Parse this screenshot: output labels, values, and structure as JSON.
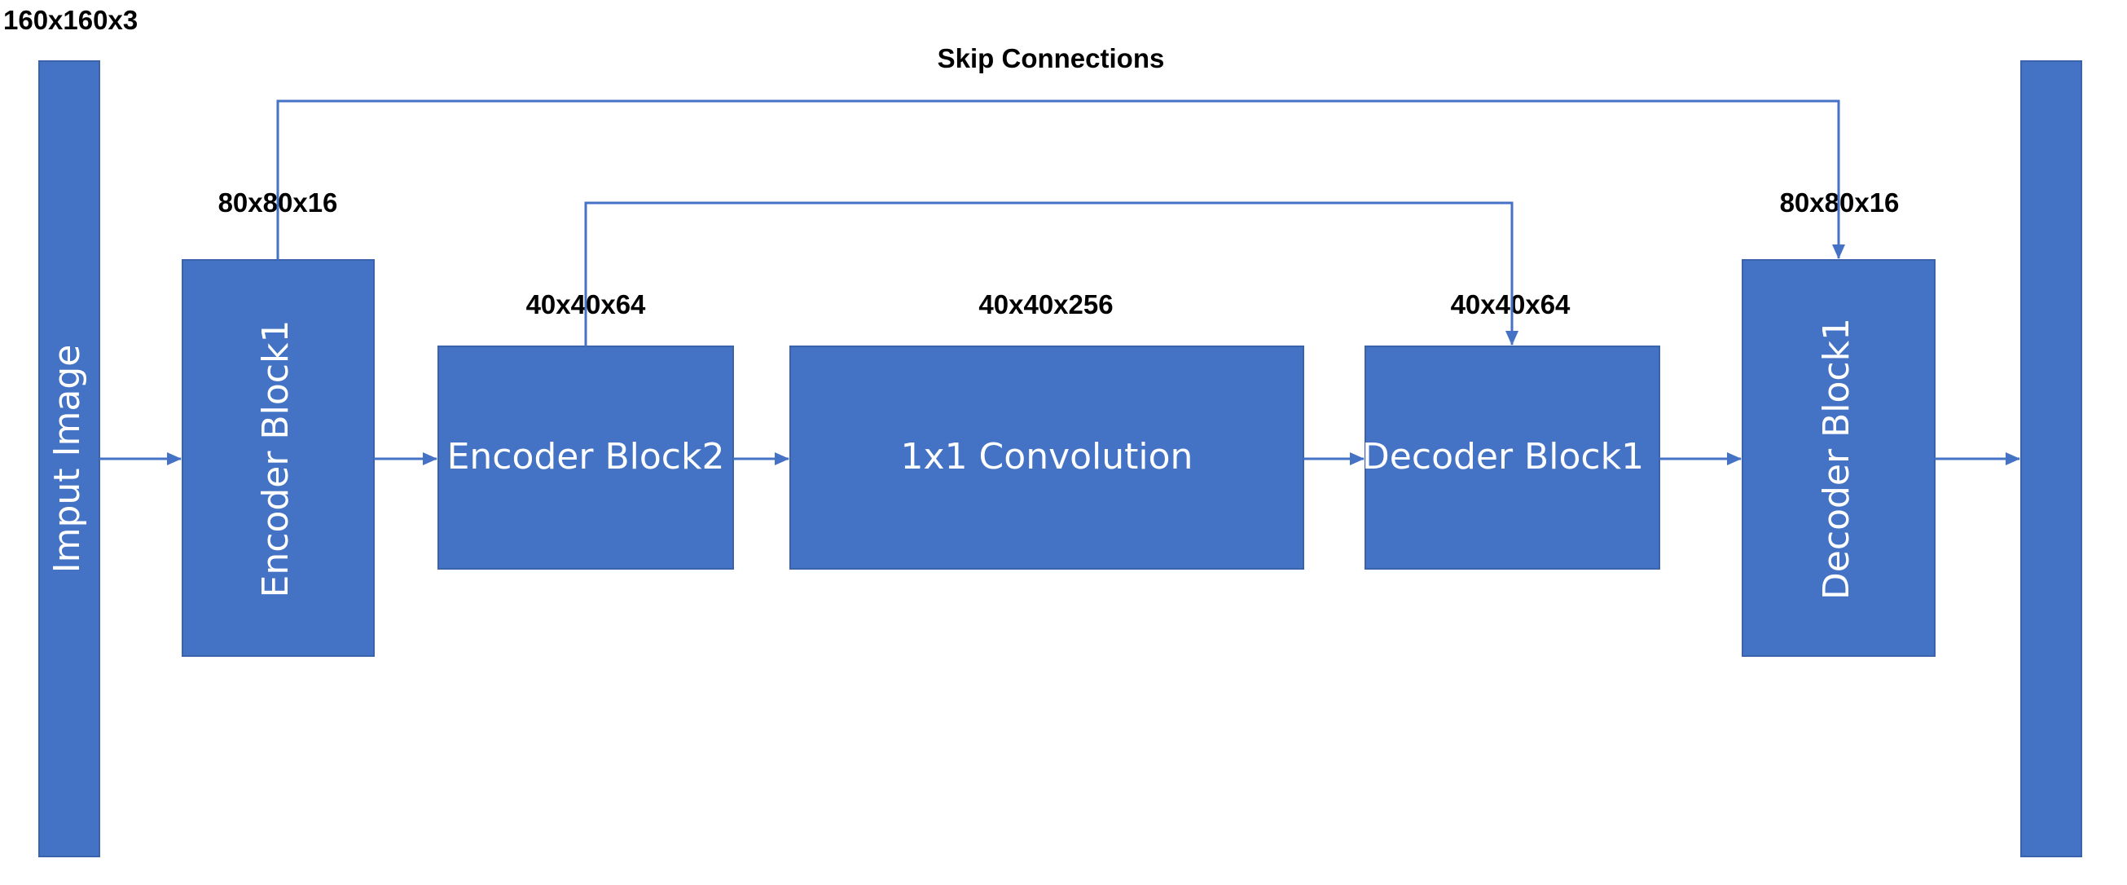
{
  "diagram": {
    "colors": {
      "block_fill": "#4472C4",
      "connector": "#4472C4",
      "label_text": "#000000",
      "block_text": "#FFFFFF"
    },
    "input_dim": "160x160x3",
    "skip_title": "Skip Connections",
    "input_label": "Imput Image",
    "blocks": {
      "encoder1": {
        "label": "Encoder Block1",
        "dim": "80x80x16"
      },
      "encoder2": {
        "label": "Encoder Block2",
        "dim": "40x40x64"
      },
      "conv": {
        "label": "1x1 Convolution",
        "dim": "40x40x256"
      },
      "decoder1": {
        "label": "Decoder Block1",
        "dim": "40x40x64"
      },
      "decoder2": {
        "label": "Decoder Block1",
        "dim": "80x80x16"
      }
    }
  }
}
